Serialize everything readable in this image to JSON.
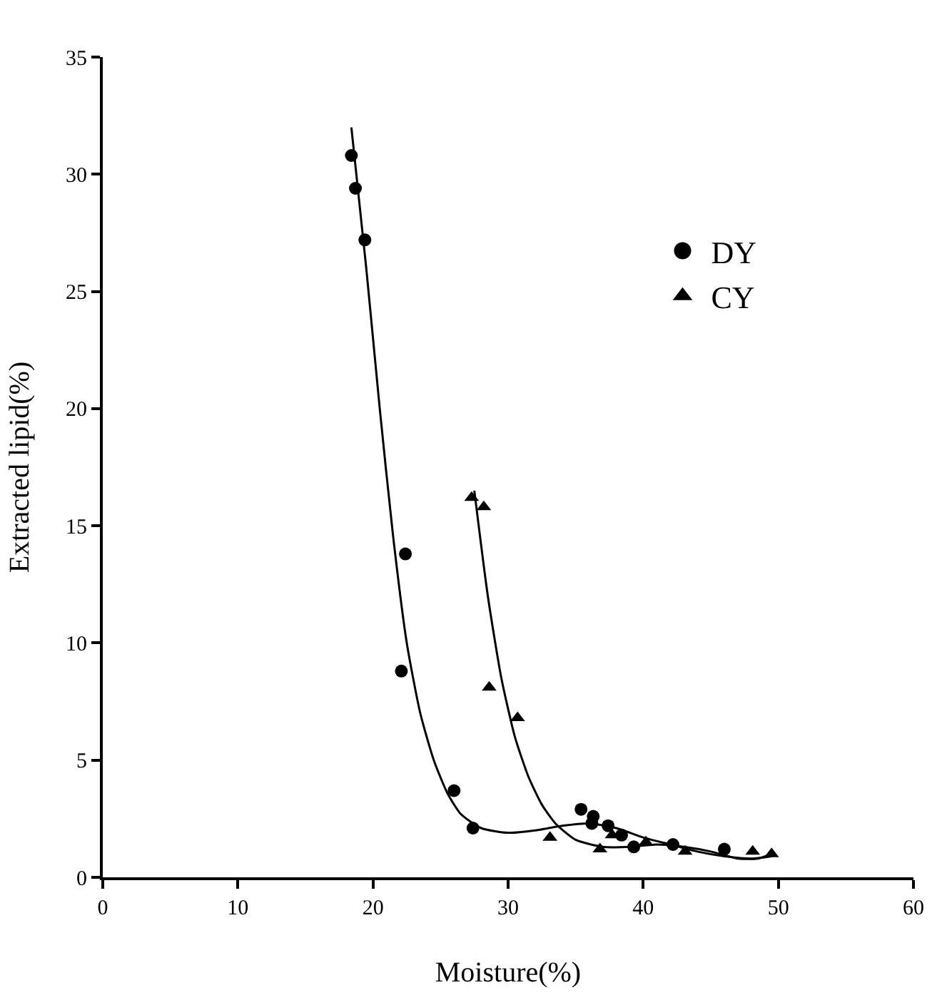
{
  "chart_data": {
    "type": "scatter",
    "xlabel": "Moisture(%)",
    "ylabel": "Extracted lipid(%)",
    "xlim": [
      0,
      60
    ],
    "xticks": [
      0,
      10,
      20,
      30,
      40,
      50,
      60
    ],
    "ylim": [
      0,
      35
    ],
    "yticks": [
      0,
      5,
      10,
      15,
      20,
      25,
      30,
      35
    ],
    "legend": "top right",
    "series": [
      {
        "name": "DY",
        "color": "#000000",
        "marker": "circle",
        "x": [
          18.4,
          18.7,
          19.4,
          22.4,
          22.1,
          26.0,
          27.4,
          35.4,
          36.3,
          36.2,
          37.4,
          38.4,
          39.3,
          42.2,
          46.0
        ],
        "values": [
          30.8,
          29.4,
          27.2,
          13.8,
          8.8,
          3.7,
          2.1,
          2.9,
          2.6,
          2.3,
          2.2,
          1.8,
          1.3,
          1.4,
          1.2
        ]
      },
      {
        "name": "CY",
        "color": "#000000",
        "marker": "triangle",
        "x": [
          27.3,
          28.2,
          28.6,
          30.7,
          33.1,
          36.8,
          37.7,
          40.2,
          43.1,
          48.1,
          49.5
        ],
        "values": [
          16.2,
          15.8,
          8.1,
          6.8,
          1.7,
          1.2,
          1.8,
          1.5,
          1.1,
          1.1,
          1.0
        ]
      },
      {
        "type": "line",
        "color": "#000000",
        "marker": "none",
        "line_style": "solid",
        "x": [
          18.4,
          19.5,
          20.5,
          21.5,
          22.5,
          23.5,
          24.5,
          25.5,
          26.5,
          28,
          30,
          32,
          34,
          36,
          38,
          40,
          42,
          44,
          46,
          48,
          49.5
        ],
        "values": [
          32,
          26,
          20,
          14.5,
          10,
          7,
          5,
          3.6,
          2.7,
          2.1,
          1.9,
          2.0,
          2.2,
          2.3,
          2.1,
          1.7,
          1.4,
          1.1,
          0.9,
          0.8,
          0.9
        ]
      },
      {
        "type": "line",
        "color": "#000000",
        "marker": "none",
        "line_style": "solid",
        "x": [
          27.5,
          28.5,
          29.5,
          30.5,
          31.5,
          32.5,
          33.5,
          35,
          37,
          39,
          41,
          43,
          45,
          47,
          48.5,
          49.5
        ],
        "values": [
          16.5,
          12,
          8.5,
          6,
          4.3,
          3.1,
          2.3,
          1.6,
          1.3,
          1.3,
          1.4,
          1.3,
          1.1,
          0.8,
          0.8,
          1.0
        ]
      }
    ]
  }
}
